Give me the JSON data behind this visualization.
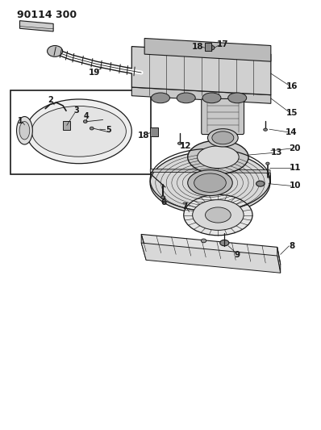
{
  "title": "90114 300",
  "bg_color": "#ffffff",
  "line_color": "#1a1a1a",
  "title_fontsize": 9,
  "label_fontsize": 7.5
}
